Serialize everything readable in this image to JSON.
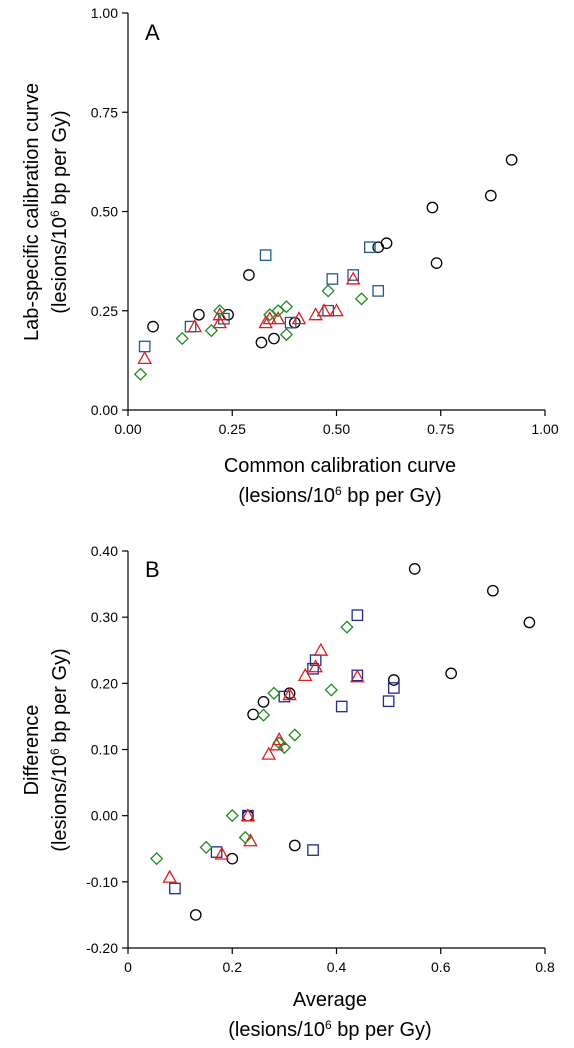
{
  "chart_data": [
    {
      "type": "scatter",
      "panel_label": "A",
      "xlabel": {
        "main": "Common calibration curve",
        "unit_pre": "(lesions/10",
        "unit_sup": "6",
        "unit_post": " bp per Gy)"
      },
      "ylabel": {
        "main": "Lab-specific calibration curve",
        "unit_pre": "(lesions/10",
        "unit_sup": "6",
        "unit_post": " bp per Gy)"
      },
      "xlim": [
        0,
        1
      ],
      "ylim": [
        0,
        1
      ],
      "x_ticks": [
        "0.00",
        "0.25",
        "0.50",
        "0.75",
        "1.00"
      ],
      "y_ticks": [
        "0.00",
        "0.25",
        "0.50",
        "0.75",
        "1.00"
      ],
      "legend": "none",
      "grid": false,
      "series": [
        {
          "marker": "circle",
          "color": "#000000",
          "points": [
            [
              0.06,
              0.21
            ],
            [
              0.17,
              0.24
            ],
            [
              0.24,
              0.24
            ],
            [
              0.29,
              0.34
            ],
            [
              0.32,
              0.17
            ],
            [
              0.35,
              0.18
            ],
            [
              0.4,
              0.22
            ],
            [
              0.6,
              0.41
            ],
            [
              0.62,
              0.42
            ],
            [
              0.73,
              0.51
            ],
            [
              0.74,
              0.37
            ],
            [
              0.87,
              0.54
            ],
            [
              0.92,
              0.63
            ]
          ]
        },
        {
          "marker": "square",
          "color": "#1f5a8a",
          "points": [
            [
              0.04,
              0.16
            ],
            [
              0.15,
              0.21
            ],
            [
              0.23,
              0.23
            ],
            [
              0.33,
              0.39
            ],
            [
              0.39,
              0.22
            ],
            [
              0.48,
              0.25
            ],
            [
              0.49,
              0.33
            ],
            [
              0.54,
              0.34
            ],
            [
              0.58,
              0.41
            ],
            [
              0.6,
              0.3
            ]
          ]
        },
        {
          "marker": "triangle",
          "color": "#e8191d",
          "points": [
            [
              0.04,
              0.13
            ],
            [
              0.16,
              0.21
            ],
            [
              0.22,
              0.24
            ],
            [
              0.22,
              0.22
            ],
            [
              0.33,
              0.22
            ],
            [
              0.34,
              0.23
            ],
            [
              0.36,
              0.23
            ],
            [
              0.41,
              0.23
            ],
            [
              0.45,
              0.24
            ],
            [
              0.47,
              0.25
            ],
            [
              0.5,
              0.25
            ],
            [
              0.54,
              0.33
            ]
          ]
        },
        {
          "marker": "diamond",
          "color": "#1e8c1e",
          "points": [
            [
              0.03,
              0.09
            ],
            [
              0.13,
              0.18
            ],
            [
              0.2,
              0.2
            ],
            [
              0.22,
              0.25
            ],
            [
              0.34,
              0.24
            ],
            [
              0.36,
              0.25
            ],
            [
              0.38,
              0.19
            ],
            [
              0.38,
              0.26
            ],
            [
              0.48,
              0.3
            ],
            [
              0.56,
              0.28
            ]
          ]
        }
      ]
    },
    {
      "type": "scatter",
      "panel_label": "B",
      "xlabel": {
        "main": "Average",
        "unit_pre": "(lesions/10",
        "unit_sup": "6",
        "unit_post": " bp per Gy)"
      },
      "ylabel": {
        "main": "Difference",
        "unit_pre": "(lesions/10",
        "unit_sup": "6",
        "unit_post": " bp per Gy)"
      },
      "xlim": [
        0,
        0.8
      ],
      "ylim": [
        -0.2,
        0.4
      ],
      "x_ticks": [
        "0",
        "0.2",
        "0.4",
        "0.6",
        "0.8"
      ],
      "y_ticks": [
        "-0.20",
        "-0.10",
        "0.00",
        "0.10",
        "0.20",
        "0.30",
        "0.40"
      ],
      "legend": "none",
      "grid": false,
      "series": [
        {
          "marker": "circle",
          "color": "#000000",
          "points": [
            [
              0.13,
              -0.15
            ],
            [
              0.2,
              -0.065
            ],
            [
              0.23,
              0.0
            ],
            [
              0.24,
              0.153
            ],
            [
              0.26,
              0.172
            ],
            [
              0.31,
              0.185
            ],
            [
              0.32,
              -0.045
            ],
            [
              0.51,
              0.205
            ],
            [
              0.55,
              0.373
            ],
            [
              0.62,
              0.215
            ],
            [
              0.7,
              0.34
            ],
            [
              0.77,
              0.292
            ]
          ]
        },
        {
          "marker": "square",
          "color": "#1f2b8f",
          "points": [
            [
              0.09,
              -0.11
            ],
            [
              0.17,
              -0.055
            ],
            [
              0.23,
              0.0
            ],
            [
              0.3,
              0.18
            ],
            [
              0.355,
              0.222
            ],
            [
              0.36,
              0.235
            ],
            [
              0.355,
              -0.052
            ],
            [
              0.41,
              0.165
            ],
            [
              0.44,
              0.212
            ],
            [
              0.44,
              0.303
            ],
            [
              0.5,
              0.173
            ],
            [
              0.51,
              0.193
            ]
          ]
        },
        {
          "marker": "triangle",
          "color": "#e8191d",
          "points": [
            [
              0.08,
              -0.093
            ],
            [
              0.18,
              -0.058
            ],
            [
              0.23,
              0.0
            ],
            [
              0.235,
              -0.038
            ],
            [
              0.27,
              0.093
            ],
            [
              0.285,
              0.107
            ],
            [
              0.29,
              0.115
            ],
            [
              0.31,
              0.183
            ],
            [
              0.34,
              0.212
            ],
            [
              0.36,
              0.225
            ],
            [
              0.37,
              0.25
            ],
            [
              0.44,
              0.21
            ]
          ]
        },
        {
          "marker": "diamond",
          "color": "#1e8c1e",
          "points": [
            [
              0.055,
              -0.065
            ],
            [
              0.15,
              -0.048
            ],
            [
              0.2,
              0.0
            ],
            [
              0.225,
              -0.033
            ],
            [
              0.26,
              0.152
            ],
            [
              0.28,
              0.185
            ],
            [
              0.29,
              0.11
            ],
            [
              0.3,
              0.103
            ],
            [
              0.32,
              0.122
            ],
            [
              0.39,
              0.19
            ],
            [
              0.42,
              0.285
            ]
          ]
        }
      ]
    }
  ]
}
